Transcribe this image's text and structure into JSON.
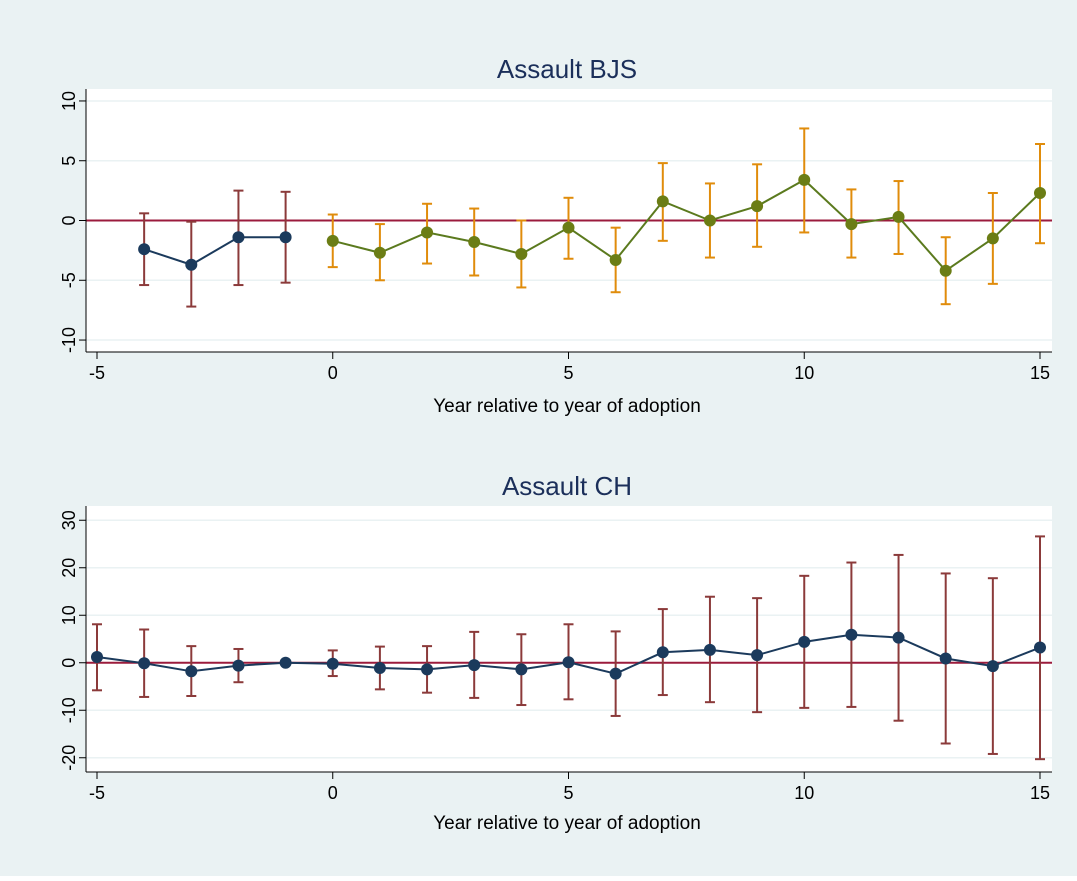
{
  "colors": {
    "background": "#eaf2f3",
    "plot_bg": "#ffffff",
    "grid": "#eaf2f3",
    "zero_line": "#9b1b3c",
    "pre_series": "#1b3a5c",
    "post_series": "#5b7a1e",
    "post_marker": "#6b7d15",
    "ci_pre": "#8b3a3a",
    "ci_post": "#e08c0b",
    "title": "#1b2f5a",
    "text": "#000000"
  },
  "chart_data": [
    {
      "type": "line",
      "title": "Assault BJS",
      "xlabel": "Year relative to year of adoption",
      "ylabel": "",
      "xlim": [
        -5,
        15
      ],
      "ylim": [
        -11,
        11
      ],
      "xticks": [
        -5,
        0,
        5,
        10,
        15
      ],
      "yticks": [
        -10,
        -5,
        0,
        5,
        10
      ],
      "grid": true,
      "reference_line": 0,
      "series": [
        {
          "style": "pre",
          "x": [
            -4,
            -3,
            -2,
            -1
          ],
          "y": [
            -2.4,
            -3.7,
            -1.4,
            -1.4
          ],
          "ci_low": [
            -5.4,
            -7.2,
            -5.4,
            -5.2
          ],
          "ci_high": [
            0.6,
            -0.1,
            2.5,
            2.4
          ]
        },
        {
          "style": "post",
          "x": [
            0,
            1,
            2,
            3,
            4,
            5,
            6,
            7,
            8,
            9,
            10,
            11,
            12,
            13,
            14,
            15
          ],
          "y": [
            -1.7,
            -2.7,
            -1.0,
            -1.8,
            -2.8,
            -0.6,
            -3.3,
            1.6,
            0.0,
            1.2,
            3.4,
            -0.3,
            0.3,
            -4.2,
            -1.5,
            2.3
          ],
          "ci_low": [
            -3.9,
            -5.0,
            -3.6,
            -4.6,
            -5.6,
            -3.2,
            -6.0,
            -1.7,
            -3.1,
            -2.2,
            -1.0,
            -3.1,
            -2.8,
            -7.0,
            -5.3,
            -1.9
          ],
          "ci_high": [
            0.5,
            -0.3,
            1.4,
            1.0,
            0.0,
            1.9,
            -0.6,
            4.8,
            3.1,
            4.7,
            7.7,
            2.6,
            3.3,
            -1.4,
            2.3,
            6.4
          ]
        }
      ]
    },
    {
      "type": "line",
      "title": "Assault CH",
      "xlabel": "Year relative to year of adoption",
      "ylabel": "",
      "xlim": [
        -5,
        15
      ],
      "ylim": [
        -23,
        33
      ],
      "xticks": [
        -5,
        0,
        5,
        10,
        15
      ],
      "yticks": [
        -20,
        -10,
        0,
        10,
        20,
        30
      ],
      "grid": true,
      "reference_line": 0,
      "series": [
        {
          "style": "pre",
          "x": [
            -5,
            -4,
            -3,
            -2,
            -1,
            0,
            1,
            2,
            3,
            4,
            5,
            6,
            7,
            8,
            9,
            10,
            11,
            12,
            13,
            14,
            15
          ],
          "y": [
            1.2,
            -0.1,
            -1.8,
            -0.6,
            0.0,
            -0.2,
            -1.1,
            -1.4,
            -0.5,
            -1.4,
            0.1,
            -2.3,
            2.2,
            2.7,
            1.6,
            4.4,
            5.9,
            5.3,
            0.9,
            -0.7,
            3.2
          ],
          "ci_low": [
            -5.8,
            -7.2,
            -7.0,
            -4.1,
            null,
            -2.8,
            -5.6,
            -6.3,
            -7.4,
            -8.9,
            -7.7,
            -11.2,
            -6.8,
            -8.3,
            -10.4,
            -9.5,
            -9.3,
            -12.2,
            -17.0,
            -19.2,
            -20.3
          ],
          "ci_high": [
            8.1,
            7.0,
            3.5,
            2.9,
            null,
            2.6,
            3.4,
            3.5,
            6.5,
            6.0,
            8.1,
            6.6,
            11.3,
            13.9,
            13.6,
            18.3,
            21.1,
            22.7,
            18.8,
            17.8,
            26.6
          ]
        }
      ]
    }
  ]
}
